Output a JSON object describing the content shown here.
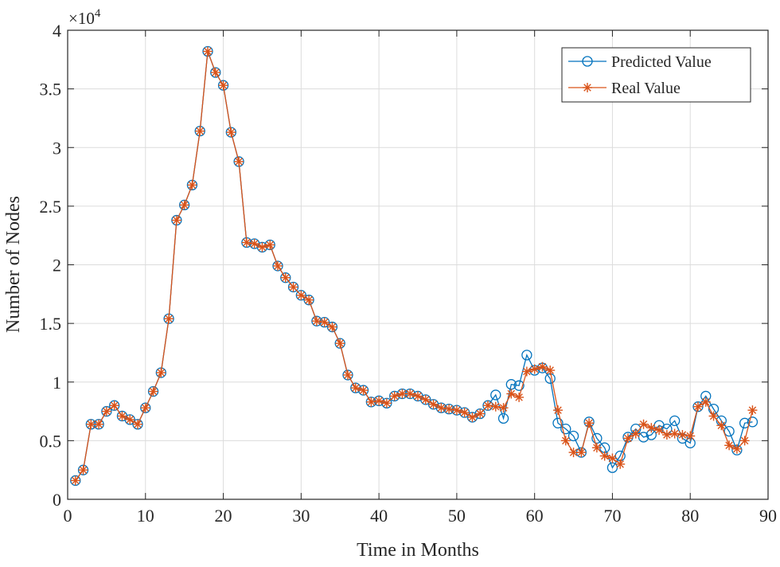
{
  "chart_data": {
    "type": "line",
    "xlabel": "Time in Months",
    "ylabel": "Number of Nodes",
    "y_multiplier_label": "×10",
    "y_multiplier_exp": "4",
    "xlim": [
      0,
      90
    ],
    "ylim": [
      0,
      40000
    ],
    "xticks": [
      0,
      10,
      20,
      30,
      40,
      50,
      60,
      70,
      80,
      90
    ],
    "yticks": [
      0,
      5000,
      10000,
      15000,
      20000,
      25000,
      30000,
      35000,
      40000
    ],
    "ytick_labels": [
      "0",
      "0.5",
      "1",
      "1.5",
      "2",
      "2.5",
      "3",
      "3.5",
      "4"
    ],
    "grid": true,
    "legend_position": "top-right",
    "x": [
      1,
      2,
      3,
      4,
      5,
      6,
      7,
      8,
      9,
      10,
      11,
      12,
      13,
      14,
      15,
      16,
      17,
      18,
      19,
      20,
      21,
      22,
      23,
      24,
      25,
      26,
      27,
      28,
      29,
      30,
      31,
      32,
      33,
      34,
      35,
      36,
      37,
      38,
      39,
      40,
      41,
      42,
      43,
      44,
      45,
      46,
      47,
      48,
      49,
      50,
      51,
      52,
      53,
      54,
      55,
      56,
      57,
      58,
      59,
      60,
      61,
      62,
      63,
      64,
      65,
      66,
      67,
      68,
      69,
      70,
      71,
      72,
      73,
      74,
      75,
      76,
      77,
      78,
      79,
      80,
      81,
      82,
      83,
      84,
      85,
      86,
      87,
      88
    ],
    "series": [
      {
        "name": "Predicted Value",
        "color": "#0072BD",
        "marker": "circle",
        "values": [
          1600,
          2500,
          6400,
          6400,
          7500,
          8000,
          7100,
          6800,
          6400,
          7800,
          9200,
          10800,
          15400,
          23800,
          25100,
          26800,
          31400,
          38200,
          36400,
          35300,
          31300,
          28800,
          21900,
          21800,
          21500,
          21700,
          19900,
          18900,
          18100,
          17400,
          17000,
          15200,
          15100,
          14700,
          13300,
          10600,
          9500,
          9300,
          8300,
          8400,
          8200,
          8800,
          9000,
          9000,
          8800,
          8500,
          8100,
          7800,
          7700,
          7600,
          7400,
          7000,
          7300,
          8000,
          8900,
          6900,
          9800,
          9700,
          12300,
          11000,
          11200,
          10300,
          6500,
          6000,
          5400,
          4000,
          6600,
          5200,
          4400,
          2700,
          3700,
          5300,
          6000,
          5300,
          5500,
          6300,
          6000,
          6700,
          5200,
          4800,
          7900,
          8800,
          7700,
          6700,
          5800,
          4200,
          6500,
          6600
        ]
      },
      {
        "name": "Real Value",
        "color": "#D95319",
        "marker": "asterisk",
        "values": [
          1600,
          2500,
          6400,
          6400,
          7500,
          8000,
          7100,
          6800,
          6400,
          7800,
          9200,
          10800,
          15400,
          23800,
          25100,
          26800,
          31400,
          38200,
          36400,
          35300,
          31300,
          28800,
          21900,
          21800,
          21500,
          21700,
          19900,
          18900,
          18100,
          17400,
          17000,
          15200,
          15100,
          14700,
          13300,
          10600,
          9500,
          9300,
          8300,
          8400,
          8200,
          8800,
          9000,
          9000,
          8800,
          8500,
          8100,
          7800,
          7700,
          7600,
          7400,
          7000,
          7300,
          8000,
          7900,
          7800,
          9000,
          8700,
          10900,
          11100,
          11300,
          11000,
          7600,
          5000,
          4000,
          4000,
          6500,
          4400,
          3700,
          3500,
          3000,
          5200,
          5600,
          6400,
          6100,
          5900,
          5500,
          5600,
          5500,
          5400,
          7900,
          8300,
          7100,
          6300,
          4600,
          4300,
          5000,
          7600
        ]
      }
    ]
  }
}
